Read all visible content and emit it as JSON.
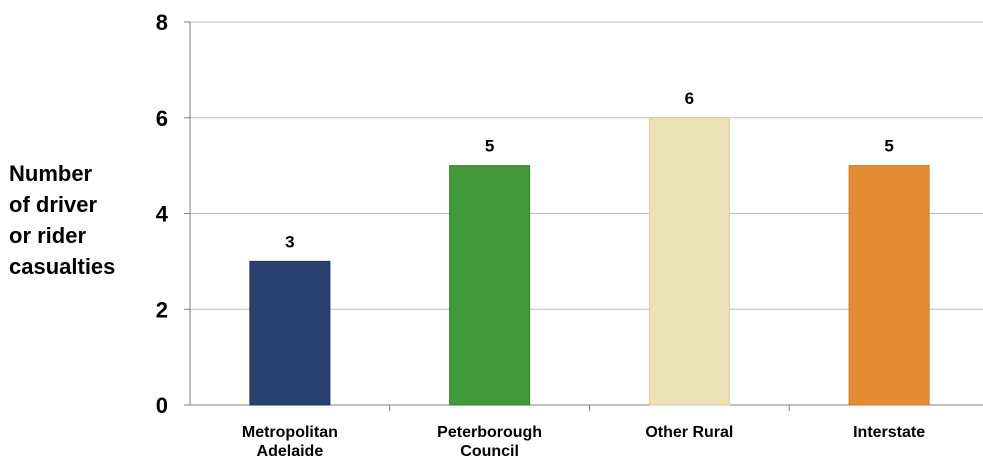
{
  "chart_data": {
    "type": "bar",
    "title": "",
    "xlabel": "",
    "ylabel_lines": [
      "Number",
      "of driver",
      "or rider",
      "casualties"
    ],
    "categories": [
      [
        "Metropolitan",
        "Adelaide"
      ],
      [
        "Peterborough",
        "Council"
      ],
      [
        "Other Rural"
      ],
      [
        "Interstate"
      ]
    ],
    "values": [
      3,
      5,
      6,
      5
    ],
    "data_labels": [
      "3",
      "5",
      "6",
      "5"
    ],
    "bar_colors": [
      "#2a406e",
      "#419939",
      "#ebe1b6",
      "#e38c34"
    ],
    "bar_border_colors": [
      "#1f3057",
      "#35802f",
      "#d8cd9e",
      "#c97826"
    ],
    "ylim": [
      0,
      8
    ],
    "yticks": [
      0,
      2,
      4,
      6,
      8
    ],
    "grid": true,
    "legend": "none"
  }
}
